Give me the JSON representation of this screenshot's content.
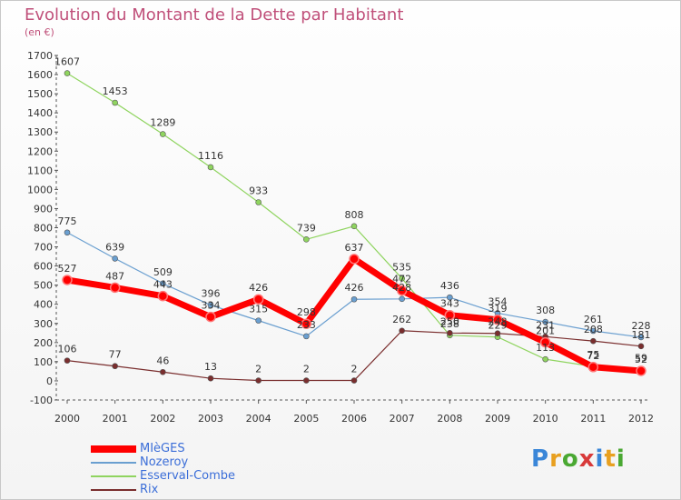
{
  "title": "Evolution du Montant de la Dette par Habitant",
  "subtitle": "(en €)",
  "brand": {
    "letters": [
      "P",
      "r",
      "o",
      "x",
      "i",
      "t",
      "i"
    ],
    "colors": [
      "#3a86d8",
      "#e8a020",
      "#4aa832",
      "#d83a3a",
      "#3a86d8",
      "#e8a020",
      "#4aa832"
    ]
  },
  "chart_data": {
    "type": "line",
    "title": "Evolution du Montant de la Dette par Habitant",
    "ylabel": "(en €)",
    "xlabel": "",
    "ylim": [
      -100,
      1700
    ],
    "yticks": [
      -100,
      0,
      100,
      200,
      300,
      400,
      500,
      600,
      700,
      800,
      900,
      1000,
      1100,
      1200,
      1300,
      1400,
      1500,
      1600,
      1700
    ],
    "categories": [
      "2000",
      "2001",
      "2002",
      "2003",
      "2004",
      "2005",
      "2006",
      "2007",
      "2008",
      "2009",
      "2010",
      "2011",
      "2012"
    ],
    "grid": false,
    "legend": "bottom-left",
    "series": [
      {
        "name": "Esserval-Combe",
        "color": "#8fd45f",
        "width": 1.2,
        "values": [
          1607,
          1453,
          1289,
          1116,
          933,
          739,
          808,
          535,
          238,
          229,
          113,
          75,
          59
        ],
        "labels": [
          "1607",
          "1453",
          "1289",
          "1116",
          "933",
          "739",
          "808",
          "535",
          "238",
          "229",
          "113",
          "75",
          "59"
        ]
      },
      {
        "name": "Nozeroy",
        "color": "#6a9fd0",
        "width": 1.2,
        "values": [
          775,
          639,
          509,
          396,
          315,
          233,
          426,
          428,
          436,
          354,
          308,
          261,
          228
        ],
        "labels": [
          "775",
          "639",
          "509",
          "396",
          "315",
          "233",
          "426",
          "428",
          "436",
          "354",
          "308",
          "261",
          "228"
        ]
      },
      {
        "name": "Rix",
        "color": "#7a2e2e",
        "width": 1.2,
        "values": [
          106,
          77,
          46,
          13,
          2,
          2,
          2,
          262,
          250,
          248,
          231,
          208,
          181
        ],
        "labels": [
          "106",
          "77",
          "46",
          "13",
          "2",
          "2",
          "2",
          "262",
          "250",
          "248",
          "231",
          "208",
          "181"
        ]
      },
      {
        "name": "MIèGES",
        "color": "#ff0000",
        "width": 7,
        "values": [
          527,
          487,
          443,
          334,
          426,
          298,
          637,
          472,
          343,
          319,
          201,
          72,
          52
        ],
        "labels": [
          "527",
          "487",
          "443",
          "334",
          "426",
          "298",
          "637",
          "472",
          "343",
          "319",
          "201",
          "72",
          "52"
        ]
      }
    ]
  }
}
